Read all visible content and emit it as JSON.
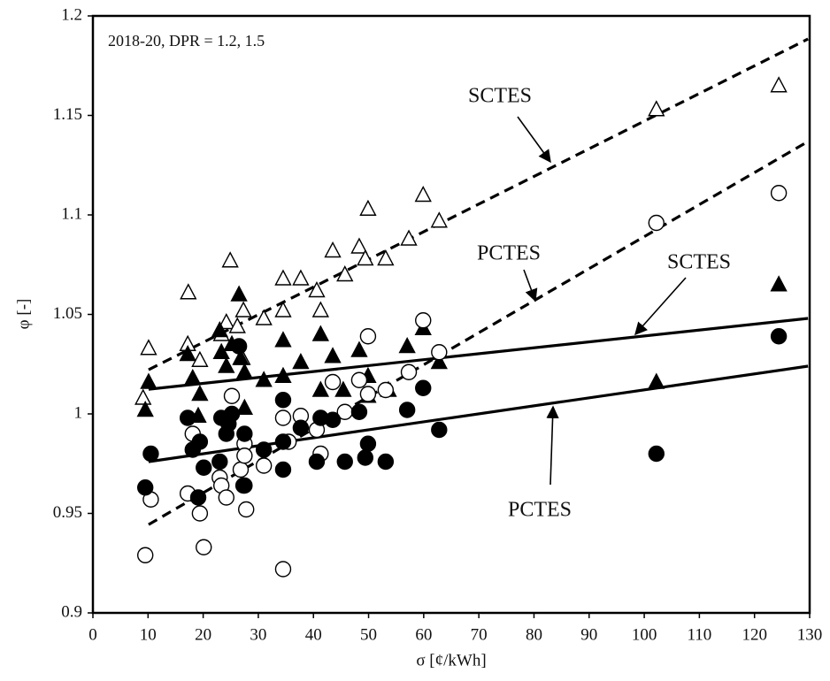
{
  "chart_data": {
    "type": "scatter",
    "xlabel": "σ [¢/kWh]",
    "ylabel": "φ [-]",
    "xlim": [
      0,
      130
    ],
    "ylim": [
      0.9,
      1.2
    ],
    "xticks": [
      0,
      10,
      20,
      30,
      40,
      50,
      60,
      70,
      80,
      90,
      100,
      110,
      120,
      130
    ],
    "yticks": [
      0.9,
      0.95,
      1,
      1.05,
      1.1,
      1.15,
      1.2
    ],
    "grid": false,
    "color": "#000000",
    "annotations": [
      "2018-20, DPR = 1.2, 1.5",
      "SCTES",
      "PCTES",
      "SCTES",
      "PCTES"
    ],
    "series": [
      {
        "marker": "triangle",
        "filled": false,
        "x": [
          10.1,
          9.1,
          17.3,
          17.2,
          19.4,
          24.9,
          24.2,
          23.3,
          26.2,
          27.3,
          27.1,
          31,
          34.5,
          34.5,
          37.7,
          40.6,
          41.3,
          43.5,
          45.7,
          48.3,
          49.4,
          49.9,
          53.1,
          57.3,
          59.9,
          62.8,
          102.2,
          124.4
        ],
        "values": [
          1.033,
          1.008,
          1.061,
          1.035,
          1.027,
          1.077,
          1.046,
          1.04,
          1.044,
          1.052,
          1.028,
          1.048,
          1.068,
          1.052,
          1.068,
          1.062,
          1.052,
          1.082,
          1.07,
          1.084,
          1.078,
          1.103,
          1.078,
          1.088,
          1.11,
          1.097,
          1.153,
          1.165
        ]
      },
      {
        "marker": "triangle",
        "filled": true,
        "x": [
          10.1,
          9.5,
          17.2,
          18.1,
          19.4,
          19.1,
          23,
          23.3,
          24.2,
          25.2,
          26.5,
          26.8,
          27.5,
          27.5,
          31,
          34.5,
          34.5,
          37.7,
          41.3,
          41.3,
          43.5,
          45.4,
          48.3,
          49.9,
          49.9,
          53.6,
          57,
          59.9,
          62.8,
          102.2,
          124.4
        ],
        "values": [
          1.016,
          1.002,
          1.03,
          1.018,
          1.01,
          0.999,
          1.042,
          1.031,
          1.024,
          1.035,
          1.06,
          1.028,
          1.021,
          1.003,
          1.017,
          1.019,
          1.037,
          1.026,
          1.04,
          1.012,
          1.029,
          1.012,
          1.032,
          1.019,
          1.009,
          1.012,
          1.034,
          1.043,
          1.026,
          1.016,
          1.065
        ]
      },
      {
        "marker": "circle",
        "filled": false,
        "x": [
          9.5,
          10.5,
          17.2,
          18.1,
          19.4,
          20.1,
          23,
          23.3,
          24.2,
          25.2,
          26.8,
          27.3,
          27.8,
          27.5,
          27.5,
          31,
          34.5,
          34.5,
          35.5,
          37.7,
          40.6,
          41.3,
          43.5,
          45.7,
          48.3,
          49.9,
          49.9,
          53.1,
          57.3,
          59.9,
          62.8,
          102.2,
          124.4
        ],
        "values": [
          0.929,
          0.957,
          0.96,
          0.99,
          0.95,
          0.933,
          0.968,
          0.964,
          0.958,
          1.009,
          0.972,
          0.964,
          0.952,
          0.985,
          0.979,
          0.974,
          0.922,
          0.998,
          0.986,
          0.999,
          0.992,
          0.98,
          1.016,
          1.001,
          1.017,
          1.039,
          1.01,
          1.012,
          1.021,
          1.047,
          1.031,
          1.096,
          1.111
        ]
      },
      {
        "marker": "circle",
        "filled": true,
        "x": [
          9.5,
          10.5,
          17.2,
          18.1,
          19.4,
          19.1,
          20.1,
          23,
          23.3,
          24.2,
          24.6,
          25.2,
          26.5,
          27.5,
          27.5,
          31,
          34.5,
          34.5,
          34.5,
          37.7,
          40.6,
          41.3,
          43.5,
          45.7,
          48.3,
          49.4,
          49.9,
          53.1,
          57,
          59.9,
          62.8,
          102.2,
          124.4
        ],
        "values": [
          0.963,
          0.98,
          0.998,
          0.982,
          0.986,
          0.958,
          0.973,
          0.976,
          0.998,
          0.99,
          0.995,
          1,
          1.034,
          0.99,
          0.964,
          0.982,
          0.972,
          0.986,
          1.007,
          0.993,
          0.976,
          0.998,
          0.997,
          0.976,
          1.001,
          0.978,
          0.985,
          0.976,
          1.002,
          1.013,
          0.992,
          0.98,
          1.039
        ]
      },
      {
        "marker": "none",
        "line": "dashed",
        "x": [
          10.1,
          129.7
        ],
        "values": [
          1.0222,
          1.1884
        ]
      },
      {
        "marker": "none",
        "line": "dashed",
        "x": [
          10.1,
          129.7
        ],
        "values": [
          0.9444,
          1.1369
        ]
      },
      {
        "marker": "none",
        "line": "solid",
        "x": [
          10.1,
          129.7
        ],
        "values": [
          1.0124,
          1.048
        ]
      },
      {
        "marker": "none",
        "line": "solid",
        "x": [
          10.1,
          129.7
        ],
        "values": [
          0.976,
          1.024
        ]
      }
    ]
  }
}
